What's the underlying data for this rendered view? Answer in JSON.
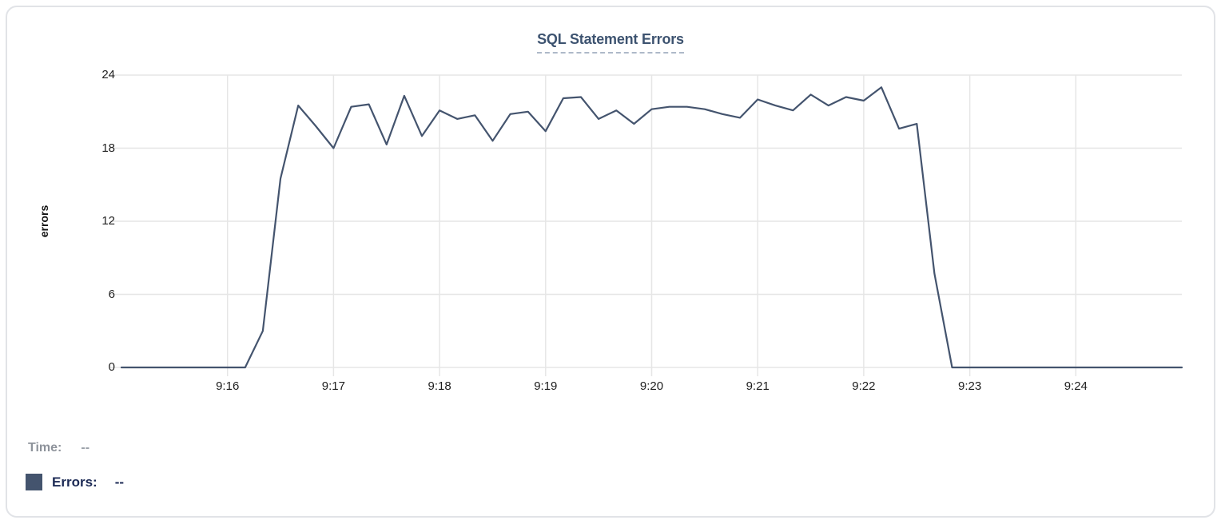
{
  "tooltip": {
    "time_label": "Time:",
    "time_value": "--",
    "errors_label": "Errors:",
    "errors_value": "--"
  },
  "chart_data": {
    "type": "line",
    "title": "SQL Statement Errors",
    "xlabel": "",
    "ylabel": "errors",
    "ylim": [
      0,
      24
    ],
    "yticks": [
      0,
      6,
      12,
      18,
      24
    ],
    "xticks": [
      "9:16",
      "9:17",
      "9:18",
      "9:19",
      "9:20",
      "9:21",
      "9:22",
      "9:23",
      "9:24"
    ],
    "xlim": [
      "9:15:00",
      "9:25:00"
    ],
    "grid": true,
    "grid_color": "#e6e6e6",
    "line_color": "#44546e",
    "legend_position": "bottom",
    "series_name": "Errors",
    "x": [
      "9:15:00",
      "9:15:10",
      "9:15:20",
      "9:15:30",
      "9:15:40",
      "9:15:50",
      "9:16:00",
      "9:16:10",
      "9:16:20",
      "9:16:30",
      "9:16:40",
      "9:16:50",
      "9:17:00",
      "9:17:10",
      "9:17:20",
      "9:17:30",
      "9:17:40",
      "9:17:50",
      "9:18:00",
      "9:18:10",
      "9:18:20",
      "9:18:30",
      "9:18:40",
      "9:18:50",
      "9:19:00",
      "9:19:10",
      "9:19:20",
      "9:19:30",
      "9:19:40",
      "9:19:50",
      "9:20:00",
      "9:20:10",
      "9:20:20",
      "9:20:30",
      "9:20:40",
      "9:20:50",
      "9:21:00",
      "9:21:10",
      "9:21:20",
      "9:21:30",
      "9:21:40",
      "9:21:50",
      "9:22:00",
      "9:22:10",
      "9:22:20",
      "9:22:30",
      "9:22:40",
      "9:22:50",
      "9:23:00",
      "9:23:10",
      "9:23:20",
      "9:23:30",
      "9:23:40",
      "9:23:50",
      "9:24:00",
      "9:24:10",
      "9:24:20",
      "9:24:30",
      "9:24:40",
      "9:24:50",
      "9:25:00"
    ],
    "values": [
      0,
      0,
      0,
      0,
      0,
      0,
      0,
      0,
      3,
      15.5,
      21.5,
      19.8,
      18,
      21.4,
      21.6,
      18.3,
      22.3,
      19,
      21.1,
      20.4,
      20.7,
      18.6,
      20.8,
      21,
      19.4,
      22.1,
      22.2,
      20.4,
      21.1,
      20,
      21.2,
      21.4,
      21.4,
      21.2,
      20.8,
      20.5,
      22,
      21.5,
      21.1,
      22.4,
      21.5,
      22.2,
      21.9,
      23,
      19.6,
      20,
      7.7,
      0,
      0,
      0,
      0,
      0,
      0,
      0,
      0,
      0,
      0,
      0,
      0,
      0,
      0
    ]
  }
}
